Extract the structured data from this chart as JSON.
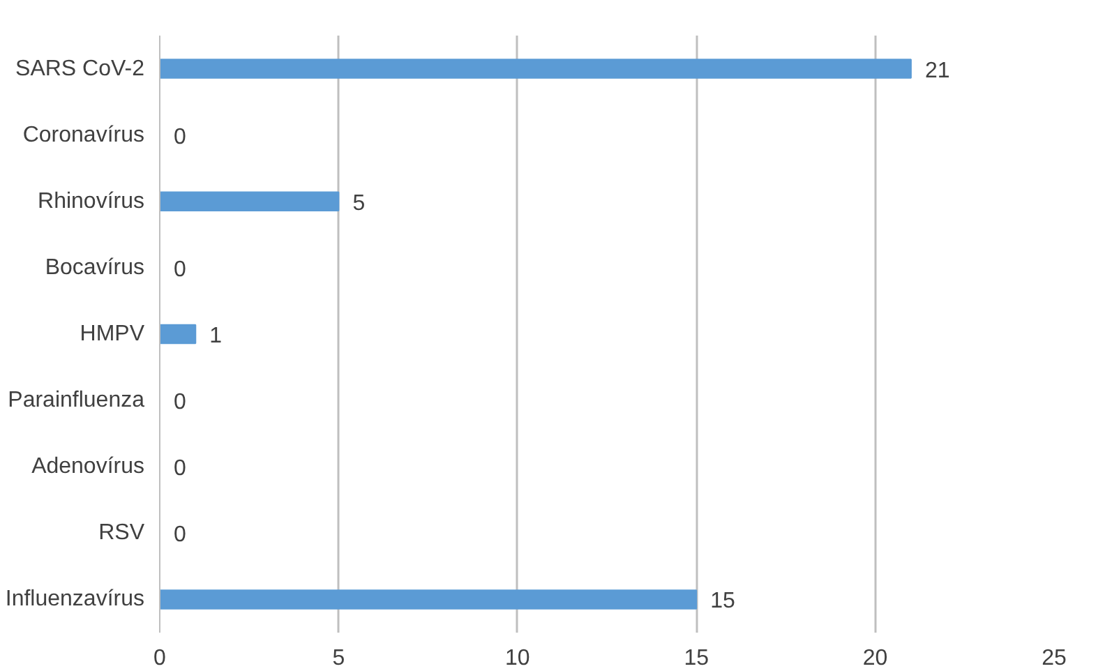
{
  "chart_data": {
    "type": "bar",
    "orientation": "horizontal",
    "categories": [
      "SARS CoV-2",
      "Coronavírus",
      "Rhinovírus",
      "Bocavírus",
      "HMPV",
      "Parainfluenza",
      "Adenovírus",
      "RSV",
      "Influenzavírus"
    ],
    "values": [
      21,
      0,
      5,
      0,
      1,
      0,
      0,
      0,
      15
    ],
    "color": "#5b9bd5",
    "xlim": [
      0,
      25
    ],
    "xticks": [
      0,
      5,
      10,
      15,
      20,
      25
    ],
    "grid": "x",
    "data_labels": true
  }
}
